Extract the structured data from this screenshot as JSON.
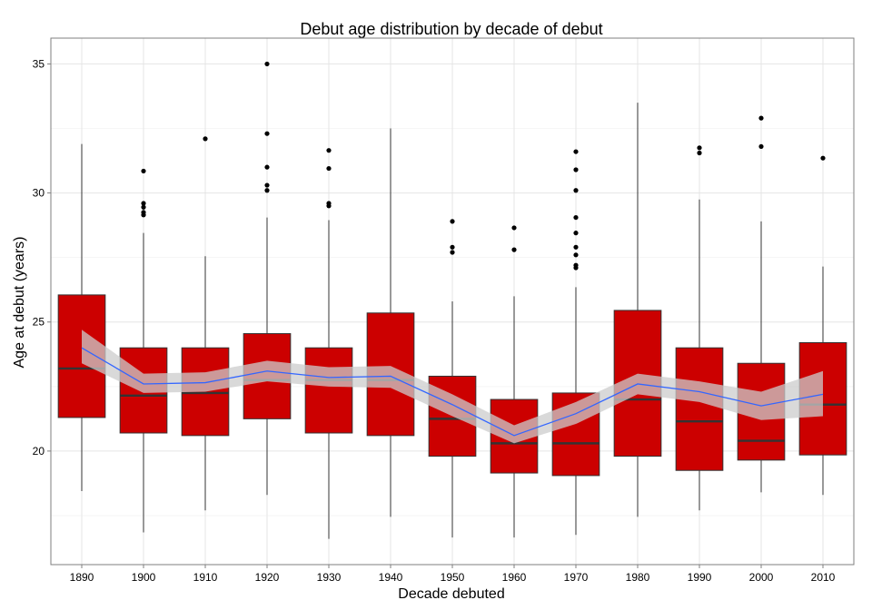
{
  "chart_data": {
    "type": "boxplot",
    "title": "Debut age distribution by decade of debut",
    "xlabel": "Decade debuted",
    "ylabel": "Age at debut (years)",
    "categories": [
      "1890",
      "1900",
      "1910",
      "1920",
      "1930",
      "1940",
      "1950",
      "1960",
      "1970",
      "1980",
      "1990",
      "2000",
      "2010"
    ],
    "y_ticks": [
      20,
      25,
      30,
      35
    ],
    "ylim": [
      15.6,
      36.0
    ],
    "grid": true,
    "box_fill": "#cc0000",
    "smooth_color": "#3366ff",
    "ribbon_color": "#cccccc",
    "boxes": [
      {
        "q1": 21.3,
        "median": 23.2,
        "q3": 26.05,
        "whisker_low": 18.45,
        "whisker_high": 31.9,
        "outliers": []
      },
      {
        "q1": 20.7,
        "median": 22.15,
        "q3": 24.0,
        "whisker_low": 16.85,
        "whisker_high": 28.45,
        "outliers": [
          29.15,
          29.25,
          29.45,
          29.6,
          30.85
        ]
      },
      {
        "q1": 20.6,
        "median": 22.25,
        "q3": 24.0,
        "whisker_low": 17.7,
        "whisker_high": 27.55,
        "outliers": [
          32.1
        ]
      },
      {
        "q1": 21.25,
        "median": 22.75,
        "q3": 24.55,
        "whisker_low": 18.3,
        "whisker_high": 29.05,
        "outliers": [
          30.1,
          30.3,
          31.0,
          32.3,
          35.0
        ]
      },
      {
        "q1": 20.7,
        "median": 22.75,
        "q3": 24.0,
        "whisker_low": 16.6,
        "whisker_high": 28.95,
        "outliers": [
          29.5,
          29.6,
          30.95,
          31.65
        ]
      },
      {
        "q1": 20.6,
        "median": 22.75,
        "q3": 25.35,
        "whisker_low": 17.45,
        "whisker_high": 32.5,
        "outliers": []
      },
      {
        "q1": 19.8,
        "median": 21.25,
        "q3": 22.9,
        "whisker_low": 16.65,
        "whisker_high": 25.8,
        "outliers": [
          27.7,
          27.9,
          28.9
        ]
      },
      {
        "q1": 19.15,
        "median": 20.3,
        "q3": 22.0,
        "whisker_low": 16.65,
        "whisker_high": 26.0,
        "outliers": [
          27.8,
          28.65
        ]
      },
      {
        "q1": 19.05,
        "median": 20.3,
        "q3": 22.25,
        "whisker_low": 16.75,
        "whisker_high": 26.35,
        "outliers": [
          27.1,
          27.2,
          27.6,
          27.9,
          28.45,
          29.05,
          30.1,
          30.9,
          31.6
        ]
      },
      {
        "q1": 19.8,
        "median": 22.0,
        "q3": 25.45,
        "whisker_low": 17.45,
        "whisker_high": 33.5,
        "outliers": []
      },
      {
        "q1": 19.25,
        "median": 21.15,
        "q3": 24.0,
        "whisker_low": 17.7,
        "whisker_high": 29.75,
        "outliers": [
          31.55,
          31.75
        ]
      },
      {
        "q1": 19.65,
        "median": 20.4,
        "q3": 23.4,
        "whisker_low": 18.4,
        "whisker_high": 28.9,
        "outliers": [
          31.8,
          32.9
        ]
      },
      {
        "q1": 19.85,
        "median": 21.8,
        "q3": 24.2,
        "whisker_low": 18.3,
        "whisker_high": 27.15,
        "outliers": [
          31.35
        ]
      }
    ],
    "smooth": {
      "values": [
        24.0,
        22.6,
        22.65,
        23.1,
        22.85,
        22.9,
        21.8,
        20.6,
        21.45,
        22.6,
        22.3,
        21.75,
        22.2
      ],
      "ribbon_low": [
        23.4,
        22.25,
        22.3,
        22.7,
        22.5,
        22.45,
        21.35,
        20.3,
        21.05,
        22.2,
        21.9,
        21.2,
        21.35
      ],
      "ribbon_high": [
        24.7,
        23.0,
        23.05,
        23.5,
        23.25,
        23.3,
        22.2,
        21.0,
        21.9,
        23.0,
        22.7,
        22.3,
        23.1
      ]
    }
  }
}
